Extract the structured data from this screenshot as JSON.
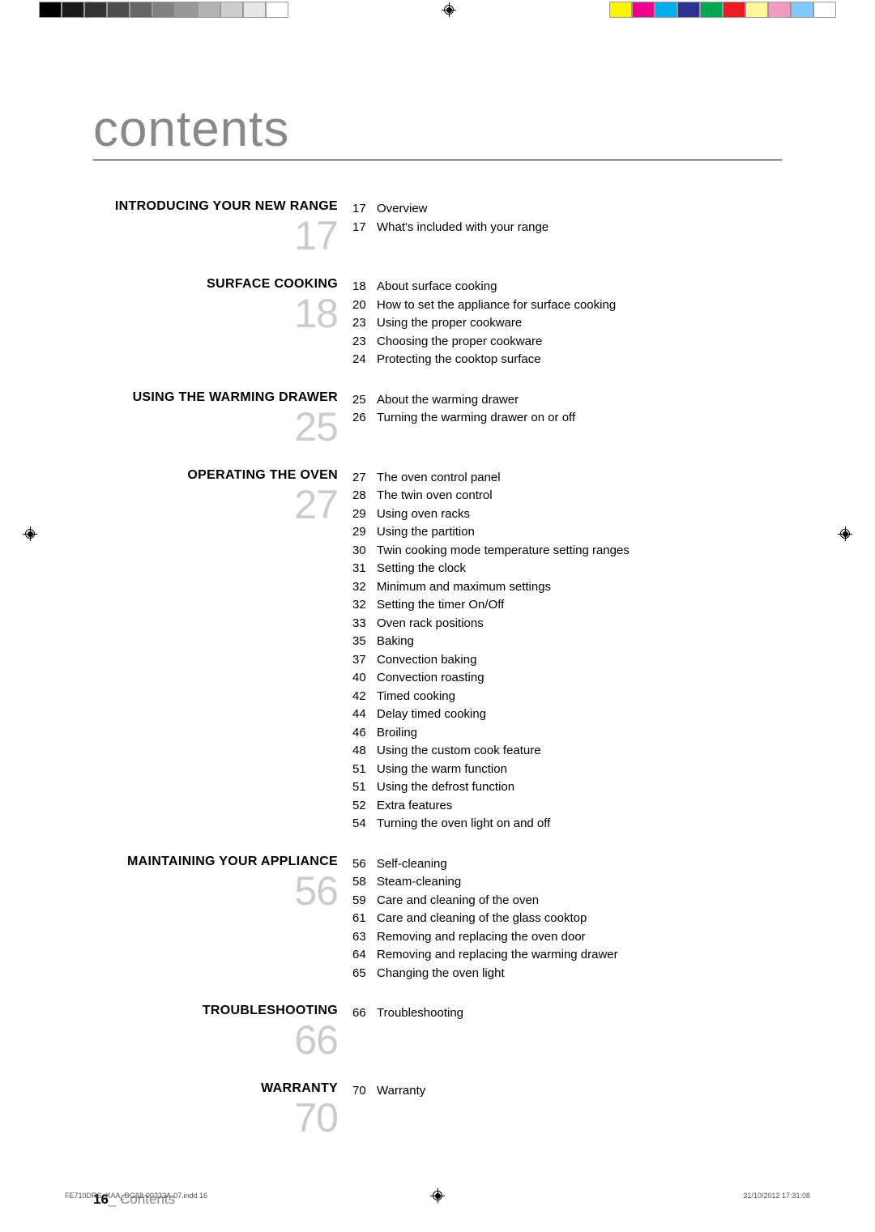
{
  "colorbars": {
    "left": [
      "#000000",
      "#1a1a1a",
      "#333333",
      "#4d4d4d",
      "#666666",
      "#808080",
      "#999999",
      "#b3b3b3",
      "#cccccc",
      "#e6e6e6",
      "#ffffff"
    ],
    "right": [
      "#fff200",
      "#ec008c",
      "#00aeef",
      "#2e3192",
      "#00a651",
      "#ed1c24",
      "#fff799",
      "#f49ac1",
      "#82caff",
      "#ffffff"
    ]
  },
  "page_title": "contents",
  "sections": [
    {
      "title": "INTRODUCING YOUR NEW RANGE",
      "page": "17",
      "items": [
        {
          "pg": "17",
          "label": "Overview"
        },
        {
          "pg": "17",
          "label": "What's included with your range"
        }
      ]
    },
    {
      "title": "SURFACE COOKING",
      "page": "18",
      "items": [
        {
          "pg": "18",
          "label": "About surface cooking"
        },
        {
          "pg": "20",
          "label": "How to set the appliance for surface cooking"
        },
        {
          "pg": "23",
          "label": "Using the proper cookware"
        },
        {
          "pg": "23",
          "label": "Choosing the proper cookware"
        },
        {
          "pg": "24",
          "label": "Protecting the cooktop surface"
        }
      ]
    },
    {
      "title": "USING THE WARMING DRAWER",
      "page": "25",
      "items": [
        {
          "pg": "25",
          "label": "About the warming drawer"
        },
        {
          "pg": "26",
          "label": "Turning the warming drawer on or off"
        }
      ]
    },
    {
      "title": "OPERATING THE OVEN",
      "page": "27",
      "items": [
        {
          "pg": "27",
          "label": "The oven control panel"
        },
        {
          "pg": "28",
          "label": "The twin oven control"
        },
        {
          "pg": "29",
          "label": "Using oven racks"
        },
        {
          "pg": "29",
          "label": "Using the partition"
        },
        {
          "pg": "30",
          "label": "Twin cooking mode temperature setting ranges"
        },
        {
          "pg": "31",
          "label": "Setting the clock"
        },
        {
          "pg": "32",
          "label": "Minimum and maximum settings"
        },
        {
          "pg": "32",
          "label": "Setting the timer On/Off"
        },
        {
          "pg": "33",
          "label": "Oven rack positions"
        },
        {
          "pg": "35",
          "label": "Baking"
        },
        {
          "pg": "37",
          "label": "Convection baking"
        },
        {
          "pg": "40",
          "label": "Convection roasting"
        },
        {
          "pg": "42",
          "label": "Timed cooking"
        },
        {
          "pg": "44",
          "label": "Delay timed cooking"
        },
        {
          "pg": "46",
          "label": "Broiling"
        },
        {
          "pg": "48",
          "label": "Using the custom cook feature"
        },
        {
          "pg": "51",
          "label": "Using the warm function"
        },
        {
          "pg": "51",
          "label": "Using the defrost function"
        },
        {
          "pg": "52",
          "label": "Extra features"
        },
        {
          "pg": "54",
          "label": "Turning the oven light on and off"
        }
      ]
    },
    {
      "title": "MAINTAINING YOUR APPLIANCE",
      "page": "56",
      "items": [
        {
          "pg": "56",
          "label": "Self-cleaning"
        },
        {
          "pg": "58",
          "label": "Steam-cleaning"
        },
        {
          "pg": "59",
          "label": "Care and cleaning of the oven"
        },
        {
          "pg": "61",
          "label": "Care and cleaning of the glass cooktop"
        },
        {
          "pg": "63",
          "label": "Removing and replacing the oven door"
        },
        {
          "pg": "64",
          "label": "Removing and replacing the warming drawer"
        },
        {
          "pg": "65",
          "label": "Changing the oven light"
        }
      ]
    },
    {
      "title": "TROUBLESHOOTING",
      "page": "66",
      "items": [
        {
          "pg": "66",
          "label": "Troubleshooting"
        }
      ]
    },
    {
      "title": "WARRANTY",
      "page": "70",
      "items": [
        {
          "pg": "70",
          "label": "Warranty"
        }
      ]
    }
  ],
  "footer": {
    "page_num": "16",
    "sep": "_ ",
    "label": "Contents"
  },
  "print_footer": {
    "file": "FE710DRS_XAA_DG68-00333A-07.indd   16",
    "date": "31/10/2012   17:31:08"
  }
}
